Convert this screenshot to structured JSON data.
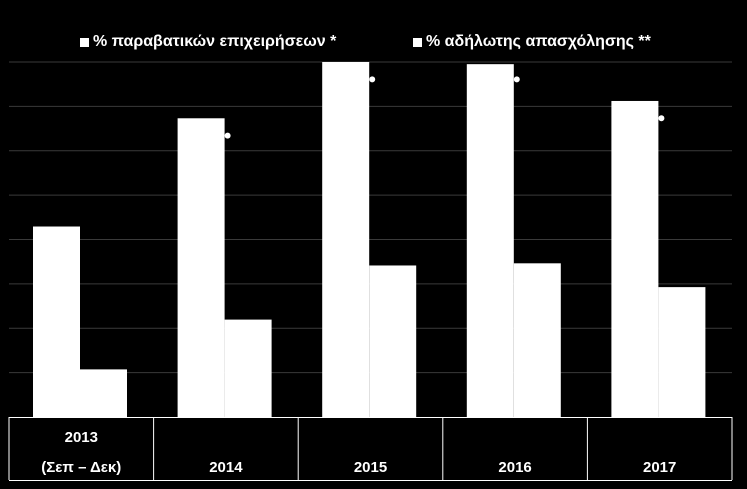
{
  "chart_data": {
    "type": "bar",
    "title": "",
    "xlabel": "",
    "ylabel": "",
    "categories": [
      [
        "2013",
        "(Σεπ – Δεκ)"
      ],
      [
        "2014"
      ],
      [
        "2015"
      ],
      [
        "2016"
      ],
      [
        "2017"
      ]
    ],
    "series": [
      {
        "name": "% παραβατικών επιχειρήσεων *",
        "color": "#ffffff",
        "values": [
          44,
          69,
          82,
          81.5,
          73
        ]
      },
      {
        "name": "% αδήλωτης απασχόλησης **",
        "color": "#ffffff",
        "values": [
          11,
          22.5,
          35,
          35.5,
          30
        ]
      }
    ],
    "ylim": [
      0,
      82
    ],
    "gridlines": 8,
    "grid": true,
    "tick_labels_visible": false,
    "legend_position": "top",
    "marker_values": [
      null,
      65,
      78,
      78,
      69
    ],
    "background": "#000000",
    "foreground": "#ffffff",
    "grid_color": "#3a3a3a"
  }
}
